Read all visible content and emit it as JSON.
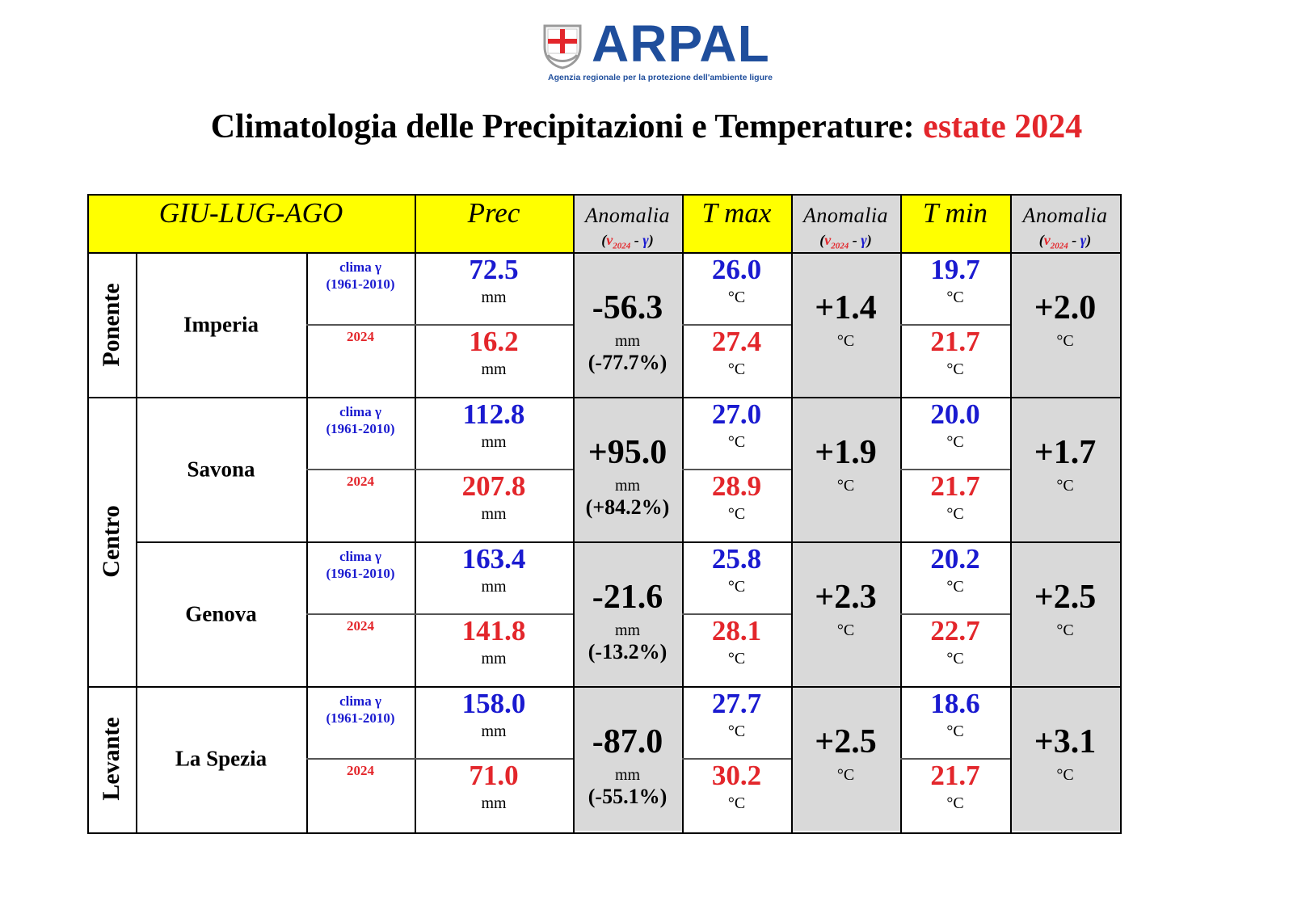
{
  "logo": {
    "wordmark": "ARPAL",
    "tagline": "Agenzia regionale per la protezione dell'ambiente ligure",
    "colors": {
      "brand": "#1f4e9c",
      "shield_red": "#e3262b"
    }
  },
  "title": {
    "main": "Climatologia delle Precipitazioni e Temperature:",
    "highlight": "estate 2024"
  },
  "header": {
    "period": "GIU-LUG-AGO",
    "prec": "Prec",
    "tmax": "T max",
    "tmin": "T min",
    "anomaly": "Anomalia",
    "formula_open": "(",
    "formula_v": "v",
    "formula_sub": "2024",
    "formula_minus": " - ",
    "formula_gamma": "γ",
    "formula_close": ")"
  },
  "labels": {
    "clima": "clima γ",
    "clima_period": "(1961-2010)",
    "year": "2024",
    "mm": "mm",
    "degc": "°C"
  },
  "zones": [
    "Ponente",
    "Centro",
    "Levante"
  ],
  "rows": [
    {
      "city": "Imperia",
      "prec_clima": "72.5",
      "prec_2024": "16.2",
      "prec_anom": "-56.3",
      "prec_anom_pct": "(-77.7%)",
      "tmax_clima": "26.0",
      "tmax_2024": "27.4",
      "tmax_anom": "+1.4",
      "tmin_clima": "19.7",
      "tmin_2024": "21.7",
      "tmin_anom": "+2.0"
    },
    {
      "city": "Savona",
      "prec_clima": "112.8",
      "prec_2024": "207.8",
      "prec_anom": "+95.0",
      "prec_anom_pct": "(+84.2%)",
      "tmax_clima": "27.0",
      "tmax_2024": "28.9",
      "tmax_anom": "+1.9",
      "tmin_clima": "20.0",
      "tmin_2024": "21.7",
      "tmin_anom": "+1.7"
    },
    {
      "city": "Genova",
      "prec_clima": "163.4",
      "prec_2024": "141.8",
      "prec_anom": "-21.6",
      "prec_anom_pct": "(-13.2%)",
      "tmax_clima": "25.8",
      "tmax_2024": "28.1",
      "tmax_anom": "+2.3",
      "tmin_clima": "20.2",
      "tmin_2024": "22.7",
      "tmin_anom": "+2.5"
    },
    {
      "city": "La Spezia",
      "prec_clima": "158.0",
      "prec_2024": "71.0",
      "prec_anom": "-87.0",
      "prec_anom_pct": "(-55.1%)",
      "tmax_clima": "27.7",
      "tmax_2024": "30.2",
      "tmax_anom": "+2.5",
      "tmin_clima": "18.6",
      "tmin_2024": "21.7",
      "tmin_anom": "+3.1"
    }
  ],
  "colors": {
    "header_bg": "#ffff00",
    "anomaly_bg": "#d9d9d9",
    "clima_text": "#1a1ad0",
    "year_text": "#e3262b"
  }
}
